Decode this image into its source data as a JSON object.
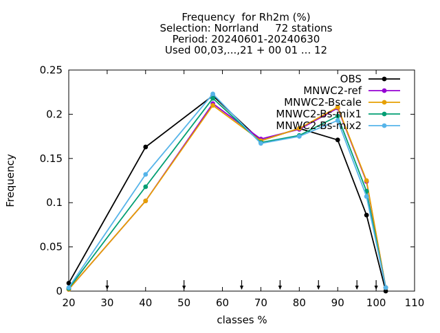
{
  "chart_data": {
    "type": "line",
    "title_lines": [
      "Frequency  for Rh2m (%)",
      "Selection: Norrland     72 stations",
      "Period: 20240601-20240630",
      "Used 00,03,...,21 + 00 01 ... 12"
    ],
    "xlabel": "classes %",
    "ylabel": "Frequency",
    "xlim": [
      20,
      110
    ],
    "ylim": [
      0,
      0.25
    ],
    "x_ticks": [
      "20",
      "30",
      "40",
      "50",
      "60",
      "70",
      "80",
      "90",
      "100",
      "110"
    ],
    "y_ticks": [
      "0",
      "0.05",
      "0.1",
      "0.15",
      "0.2",
      "0.25"
    ],
    "class_markers": [
      30,
      50,
      65,
      75,
      85,
      95,
      100
    ],
    "legend_position": "top-right",
    "grid": false,
    "series": [
      {
        "name": "OBS",
        "color": "#000000",
        "x": [
          20,
          40,
          57.5,
          70,
          80,
          90,
          97.5,
          102.5
        ],
        "values": [
          0.009,
          0.163,
          0.221,
          0.17,
          0.184,
          0.171,
          0.086,
          0.0
        ]
      },
      {
        "name": "MNWC2-ref",
        "color": "#9400d3",
        "x": [
          20,
          40,
          57.5,
          70,
          80,
          90,
          97.5,
          102.5
        ],
        "values": [
          0.002,
          0.102,
          0.212,
          0.172,
          0.183,
          0.207,
          0.124,
          0.004
        ]
      },
      {
        "name": "MNWC2-Bscale",
        "color": "#e69f00",
        "x": [
          20,
          40,
          57.5,
          70,
          80,
          90,
          97.5,
          102.5
        ],
        "values": [
          0.002,
          0.102,
          0.21,
          0.17,
          0.184,
          0.208,
          0.125,
          0.004
        ]
      },
      {
        "name": "MNWC2-Bs-mix1",
        "color": "#009e73",
        "x": [
          20,
          40,
          57.5,
          70,
          80,
          90,
          97.5,
          102.5
        ],
        "values": [
          0.003,
          0.118,
          0.218,
          0.168,
          0.176,
          0.198,
          0.113,
          0.004
        ]
      },
      {
        "name": "MNWC2-Bs-mix2",
        "color": "#56b4e9",
        "x": [
          20,
          40,
          57.5,
          70,
          80,
          90,
          97.5,
          102.5
        ],
        "values": [
          0.004,
          0.132,
          0.223,
          0.167,
          0.175,
          0.193,
          0.107,
          0.004
        ]
      }
    ]
  }
}
